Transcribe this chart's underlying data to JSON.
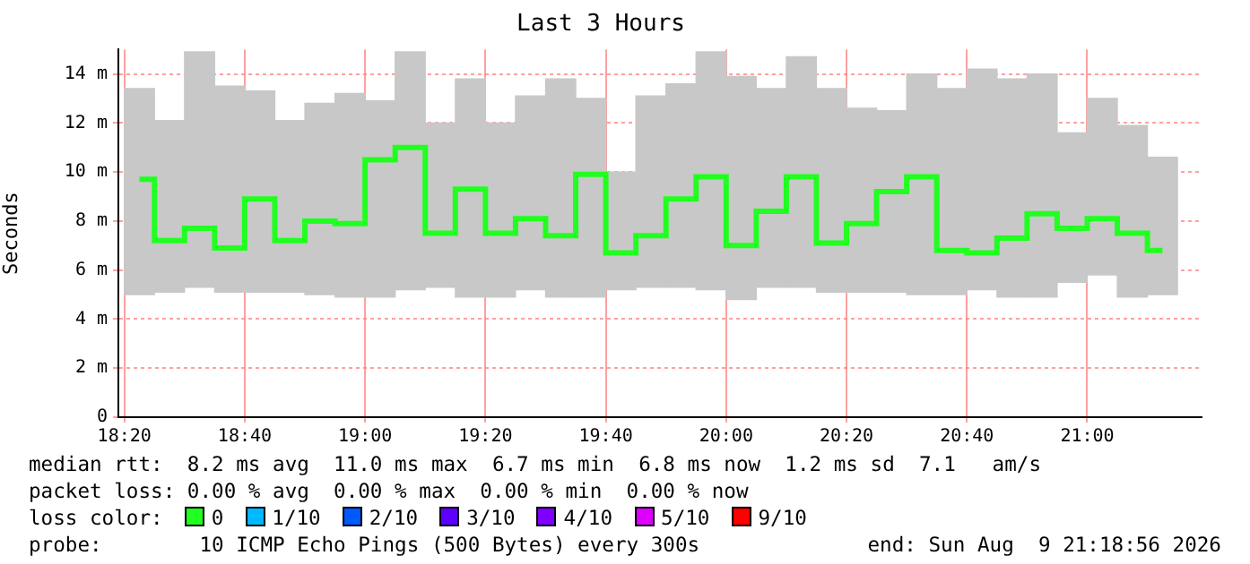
{
  "chart_data": {
    "type": "step",
    "title": "Last 3 Hours",
    "ylabel": "Seconds",
    "legend_title": "loss color:",
    "legend": "bottom",
    "grid": true,
    "x": [
      18.375,
      18.4583,
      18.5417,
      18.625,
      18.7083,
      18.7917,
      18.875,
      18.9583,
      19.0417,
      19.125,
      19.2083,
      19.2917,
      19.375,
      19.4583,
      19.5417,
      19.625,
      19.7083,
      19.7917,
      19.875,
      19.9583,
      20.0417,
      20.125,
      20.2083,
      20.2917,
      20.375,
      20.4583,
      20.5417,
      20.625,
      20.7083,
      20.7917,
      20.875,
      20.9583,
      21.0417,
      21.125,
      21.2083
    ],
    "xlim": [
      18.3167,
      21.3167
    ],
    "xticks": [
      {
        "value": 18.3333,
        "label": "18:20"
      },
      {
        "value": 18.6667,
        "label": "18:40"
      },
      {
        "value": 19,
        "label": "19:00"
      },
      {
        "value": 19.3333,
        "label": "19:20"
      },
      {
        "value": 19.6667,
        "label": "19:40"
      },
      {
        "value": 20,
        "label": "20:00"
      },
      {
        "value": 20.3333,
        "label": "20:20"
      },
      {
        "value": 20.6667,
        "label": "20:40"
      },
      {
        "value": 21,
        "label": "21:00"
      }
    ],
    "ylim": [
      0,
      15
    ],
    "yticks": [
      0,
      {
        "value": 2,
        "label": "2 m"
      },
      {
        "value": 4,
        "label": "4 m"
      },
      {
        "value": 6,
        "label": "6 m"
      },
      {
        "value": 8,
        "label": "8 m"
      },
      {
        "value": 10,
        "label": "10 m"
      },
      {
        "value": 12,
        "label": "12 m"
      },
      {
        "value": 14,
        "label": "14 m"
      }
    ],
    "series": [
      {
        "type": "bar",
        "color": "#c8c8c8",
        "base": [
          5.0,
          5.1,
          5.3,
          5.1,
          5.1,
          5.1,
          5.0,
          4.9,
          4.9,
          5.2,
          5.3,
          4.9,
          4.9,
          5.2,
          4.9,
          4.9,
          5.2,
          5.3,
          5.3,
          5.2,
          4.8,
          5.3,
          5.3,
          5.1,
          5.1,
          5.1,
          5.0,
          5.0,
          5.2,
          4.9,
          4.9,
          5.5,
          5.8,
          4.9,
          5.0
        ],
        "values": [
          8.4,
          7.0,
          9.6,
          8.4,
          8.2,
          7.0,
          7.8,
          8.3,
          8.0,
          9.7,
          6.7,
          8.9,
          7.1,
          7.9,
          8.9,
          8.1,
          4.8,
          7.8,
          8.3,
          9.7,
          9.1,
          8.1,
          9.4,
          8.3,
          7.5,
          7.4,
          9.0,
          8.4,
          9.0,
          8.9,
          9.1,
          6.1,
          7.2,
          7.0,
          5.6
        ]
      },
      {
        "name": "0",
        "color": "#20ff20",
        "values": [
          9.7,
          7.2,
          7.7,
          6.9,
          8.9,
          7.2,
          8.0,
          7.9,
          10.5,
          11.0,
          7.5,
          9.3,
          7.5,
          8.1,
          7.4,
          9.9,
          6.7,
          7.4,
          8.9,
          9.8,
          7.0,
          8.4,
          9.8,
          7.1,
          7.9,
          9.2,
          9.8,
          6.8,
          6.7,
          7.3,
          8.3,
          7.7,
          8.1,
          7.5,
          6.8
        ]
      },
      {
        "name": "1/10",
        "color": "#00b8ff",
        "values": [
          null,
          null,
          null,
          null,
          null,
          null,
          null,
          null,
          null,
          null,
          null,
          null,
          null,
          null,
          null,
          null,
          null,
          null,
          null,
          null,
          null,
          null,
          null,
          null,
          null,
          null,
          null,
          null,
          null,
          null,
          null,
          null,
          null,
          null,
          null
        ]
      },
      {
        "name": "2/10",
        "color": "#0059ff",
        "values": [
          null,
          null,
          null,
          null,
          null,
          null,
          null,
          null,
          null,
          null,
          null,
          null,
          null,
          null,
          null,
          null,
          null,
          null,
          null,
          null,
          null,
          null,
          null,
          null,
          null,
          null,
          null,
          null,
          null,
          null,
          null,
          null,
          null,
          null,
          null
        ]
      },
      {
        "name": "3/10",
        "color": "#5e00ff",
        "values": [
          null,
          null,
          null,
          null,
          null,
          null,
          null,
          null,
          null,
          null,
          null,
          null,
          null,
          null,
          null,
          null,
          null,
          null,
          null,
          null,
          null,
          null,
          null,
          null,
          null,
          null,
          null,
          null,
          null,
          null,
          null,
          null,
          null,
          null,
          null
        ]
      },
      {
        "name": "4/10",
        "color": "#7e00ff",
        "values": [
          null,
          null,
          null,
          null,
          null,
          null,
          null,
          null,
          null,
          null,
          null,
          null,
          null,
          null,
          null,
          null,
          null,
          null,
          null,
          null,
          null,
          null,
          null,
          null,
          null,
          null,
          null,
          null,
          null,
          null,
          null,
          null,
          null,
          null,
          null
        ]
      },
      {
        "name": "5/10",
        "color": "#dd00ff",
        "values": [
          null,
          null,
          null,
          null,
          null,
          null,
          null,
          null,
          null,
          null,
          null,
          null,
          null,
          null,
          null,
          null,
          null,
          null,
          null,
          null,
          null,
          null,
          null,
          null,
          null,
          null,
          null,
          null,
          null,
          null,
          null,
          null,
          null,
          null,
          null
        ]
      },
      {
        "name": "9/10",
        "color": "#ff0000",
        "values": [
          null,
          null,
          null,
          null,
          null,
          null,
          null,
          null,
          null,
          null,
          null,
          null,
          null,
          null,
          null,
          null,
          null,
          null,
          null,
          null,
          null,
          null,
          null,
          null,
          null,
          null,
          null,
          null,
          null,
          null,
          null,
          null,
          null,
          null,
          null
        ]
      }
    ],
    "annotations": [
      "median rtt:  8.2 ms avg  11.0 ms max  6.7 ms min  6.8 ms now  1.2 ms sd  7.1   am/s",
      "packet loss: 0.00 % avg  0.00 % max  0.00 % min  0.00 % now",
      "probe:        10 ICMP Echo Pings (500 Bytes) every 300s",
      "end: Sun Aug  9 21:18:56 2026"
    ]
  }
}
